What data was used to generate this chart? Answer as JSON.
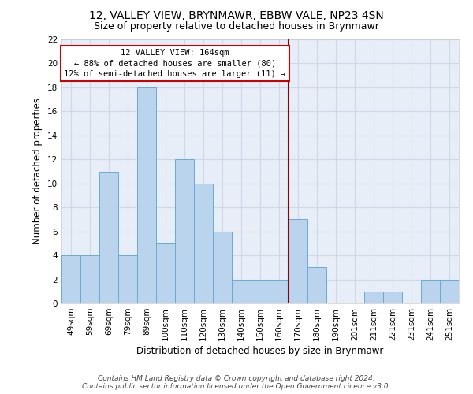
{
  "title": "12, VALLEY VIEW, BRYNMAWR, EBBW VALE, NP23 4SN",
  "subtitle": "Size of property relative to detached houses in Brynmawr",
  "xlabel": "Distribution of detached houses by size in Brynmawr",
  "ylabel": "Number of detached properties",
  "categories": [
    "49sqm",
    "59sqm",
    "69sqm",
    "79sqm",
    "89sqm",
    "100sqm",
    "110sqm",
    "120sqm",
    "130sqm",
    "140sqm",
    "150sqm",
    "160sqm",
    "170sqm",
    "180sqm",
    "190sqm",
    "201sqm",
    "211sqm",
    "221sqm",
    "231sqm",
    "241sqm",
    "251sqm"
  ],
  "values": [
    4,
    4,
    11,
    4,
    18,
    5,
    12,
    10,
    6,
    2,
    2,
    2,
    7,
    3,
    0,
    0,
    1,
    1,
    0,
    2,
    2
  ],
  "bar_color": "#bad4ed",
  "bar_edge_color": "#6aaad4",
  "bg_color": "#e8eef8",
  "grid_color": "#d0d8e8",
  "vline_color": "#8b0000",
  "annotation_text": "12 VALLEY VIEW: 164sqm\n← 88% of detached houses are smaller (80)\n12% of semi-detached houses are larger (11) →",
  "annotation_box_color": "#cc0000",
  "ylim": [
    0,
    22
  ],
  "yticks": [
    0,
    2,
    4,
    6,
    8,
    10,
    12,
    14,
    16,
    18,
    20,
    22
  ],
  "footer_line1": "Contains HM Land Registry data © Crown copyright and database right 2024.",
  "footer_line2": "Contains public sector information licensed under the Open Government Licence v3.0.",
  "title_fontsize": 10,
  "subtitle_fontsize": 9,
  "label_fontsize": 8.5,
  "tick_fontsize": 7.5,
  "footer_fontsize": 6.5,
  "ann_fontsize": 7.5
}
